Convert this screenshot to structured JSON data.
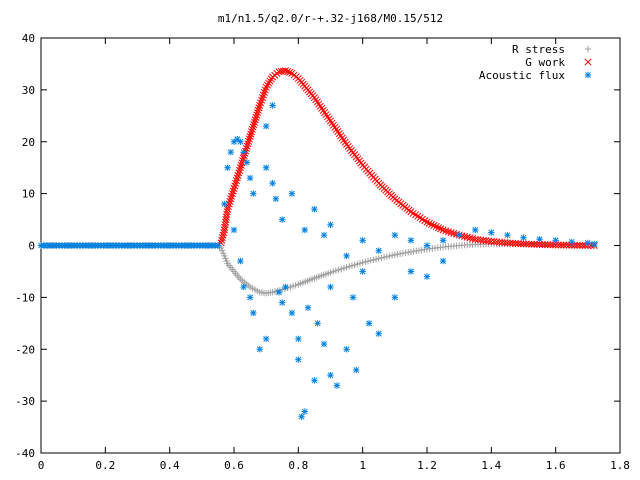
{
  "chart_data": {
    "type": "scatter",
    "title": "m1/n1.5/q2.0/r-+.32-j168/M0.15/512",
    "xlabel": "",
    "ylabel": "",
    "xlim": [
      0,
      1.8
    ],
    "ylim": [
      -40,
      40
    ],
    "x_ticks": [
      0,
      0.2,
      0.4,
      0.6,
      0.8,
      1,
      1.2,
      1.4,
      1.6,
      1.8
    ],
    "x_tick_labels": [
      "0",
      "0.2",
      "0.4",
      "0.6",
      "0.8",
      "1",
      "1.2",
      "1.4",
      "1.6",
      "1.8"
    ],
    "y_ticks": [
      -40,
      -30,
      -20,
      -10,
      0,
      10,
      20,
      30,
      40
    ],
    "y_tick_labels": [
      "-40",
      "-30",
      "-20",
      "-10",
      "0",
      "10",
      "20",
      "30",
      "40"
    ],
    "grid": false,
    "legend_position": "top-right",
    "series": [
      {
        "name": "R stress",
        "marker": "plus",
        "color": "#a0a0a0",
        "points": [
          [
            0.0,
            0
          ],
          [
            0.55,
            0
          ],
          [
            0.56,
            -0.5
          ],
          [
            0.57,
            -2
          ],
          [
            0.58,
            -3.5
          ],
          [
            0.6,
            -5
          ],
          [
            0.62,
            -6.5
          ],
          [
            0.65,
            -8
          ],
          [
            0.68,
            -9
          ],
          [
            0.7,
            -9.2
          ],
          [
            0.72,
            -9.0
          ],
          [
            0.75,
            -8.5
          ],
          [
            0.8,
            -7.5
          ],
          [
            0.85,
            -6.3
          ],
          [
            0.9,
            -5.2
          ],
          [
            0.95,
            -4.2
          ],
          [
            1.0,
            -3.3
          ],
          [
            1.05,
            -2.5
          ],
          [
            1.1,
            -1.8
          ],
          [
            1.15,
            -1.2
          ],
          [
            1.2,
            -0.7
          ],
          [
            1.25,
            -0.3
          ],
          [
            1.3,
            0.0
          ],
          [
            1.35,
            0.2
          ],
          [
            1.4,
            0.3
          ],
          [
            1.45,
            0.3
          ],
          [
            1.5,
            0.3
          ],
          [
            1.55,
            0.2
          ],
          [
            1.6,
            0.2
          ],
          [
            1.65,
            0.1
          ],
          [
            1.7,
            0.1
          ],
          [
            1.72,
            0.0
          ]
        ]
      },
      {
        "name": "G work",
        "marker": "cross",
        "color": "#ff0000",
        "points": [
          [
            0.56,
            0.5
          ],
          [
            0.57,
            3
          ],
          [
            0.58,
            7
          ],
          [
            0.6,
            11
          ],
          [
            0.62,
            15
          ],
          [
            0.65,
            21
          ],
          [
            0.68,
            27
          ],
          [
            0.7,
            30.5
          ],
          [
            0.72,
            32.5
          ],
          [
            0.74,
            33.5
          ],
          [
            0.76,
            33.7
          ],
          [
            0.78,
            33.2
          ],
          [
            0.8,
            32.2
          ],
          [
            0.85,
            28.5
          ],
          [
            0.9,
            24
          ],
          [
            0.95,
            19.5
          ],
          [
            1.0,
            15.5
          ],
          [
            1.05,
            12
          ],
          [
            1.1,
            9
          ],
          [
            1.15,
            6.5
          ],
          [
            1.2,
            4.5
          ],
          [
            1.25,
            3
          ],
          [
            1.3,
            2
          ],
          [
            1.35,
            1.2
          ],
          [
            1.4,
            0.8
          ],
          [
            1.45,
            0.5
          ],
          [
            1.5,
            0.3
          ],
          [
            1.55,
            0.2
          ],
          [
            1.6,
            0.1
          ],
          [
            1.65,
            0.05
          ],
          [
            1.7,
            0.0
          ],
          [
            1.72,
            0.0
          ]
        ]
      },
      {
        "name": "Acoustic flux",
        "marker": "star",
        "color": "#0080e0",
        "points": [
          [
            0.0,
            0
          ],
          [
            0.55,
            0
          ],
          [
            0.57,
            8
          ],
          [
            0.58,
            15
          ],
          [
            0.59,
            18
          ],
          [
            0.6,
            20
          ],
          [
            0.61,
            20.5
          ],
          [
            0.62,
            20
          ],
          [
            0.63,
            18
          ],
          [
            0.64,
            16
          ],
          [
            0.65,
            13
          ],
          [
            0.66,
            10
          ],
          [
            0.6,
            3
          ],
          [
            0.62,
            -3
          ],
          [
            0.63,
            -8
          ],
          [
            0.65,
            -10
          ],
          [
            0.66,
            -13
          ],
          [
            0.68,
            -20
          ],
          [
            0.7,
            -18
          ],
          [
            0.7,
            23
          ],
          [
            0.72,
            27
          ],
          [
            0.73,
            9
          ],
          [
            0.74,
            -9
          ],
          [
            0.75,
            -11
          ],
          [
            0.76,
            -8
          ],
          [
            0.78,
            -13
          ],
          [
            0.8,
            -22
          ],
          [
            0.8,
            -18
          ],
          [
            0.81,
            -33
          ],
          [
            0.82,
            -32
          ],
          [
            0.83,
            -12
          ],
          [
            0.85,
            -26
          ],
          [
            0.86,
            -15
          ],
          [
            0.88,
            -19
          ],
          [
            0.9,
            -8
          ],
          [
            0.9,
            -25
          ],
          [
            0.92,
            -27
          ],
          [
            0.95,
            -20
          ],
          [
            0.97,
            -10
          ],
          [
            0.98,
            -24
          ],
          [
            1.0,
            -5
          ],
          [
            1.02,
            -15
          ],
          [
            1.05,
            -17
          ],
          [
            1.1,
            -10
          ],
          [
            1.15,
            -5
          ],
          [
            1.2,
            -6
          ],
          [
            1.25,
            -3
          ],
          [
            0.7,
            15
          ],
          [
            0.72,
            12
          ],
          [
            0.75,
            5
          ],
          [
            0.78,
            10
          ],
          [
            0.82,
            3
          ],
          [
            0.85,
            7
          ],
          [
            0.88,
            2
          ],
          [
            0.9,
            4
          ],
          [
            0.95,
            -2
          ],
          [
            1.0,
            1
          ],
          [
            1.05,
            -1
          ],
          [
            1.1,
            2
          ],
          [
            1.15,
            1
          ],
          [
            1.2,
            0
          ],
          [
            1.25,
            1
          ],
          [
            1.3,
            2
          ],
          [
            1.35,
            3
          ],
          [
            1.4,
            2.5
          ],
          [
            1.45,
            2
          ],
          [
            1.5,
            1.5
          ],
          [
            1.55,
            1.2
          ],
          [
            1.6,
            1
          ],
          [
            1.65,
            0.7
          ],
          [
            1.7,
            0.5
          ],
          [
            1.72,
            0.3
          ]
        ]
      }
    ]
  }
}
